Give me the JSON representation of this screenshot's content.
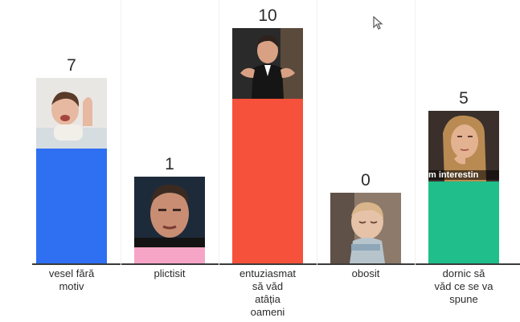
{
  "chart_data": {
    "type": "bar",
    "title": "",
    "xlabel": "",
    "ylabel": "",
    "ylim": [
      0,
      10
    ],
    "grid": false,
    "legend": "none",
    "categories": [
      "vesel fără motiv",
      "plictisit",
      "entuziasmat să văd atâția oameni",
      "obosit",
      "dornic să văd ce se va spune"
    ],
    "category_lines": [
      [
        "vesel fără",
        "motiv"
      ],
      [
        "plictisit"
      ],
      [
        "entuziasmat",
        "să văd",
        "atâția",
        "oameni"
      ],
      [
        "obosit"
      ],
      [
        "dornic să",
        "văd ce se va",
        "spune"
      ]
    ],
    "values": [
      7,
      1,
      10,
      0,
      5
    ],
    "colors": [
      "#2f6ff2",
      "#f6a5c6",
      "#f5513b",
      "#7c56d6",
      "#1fbe8a"
    ],
    "thumbnails": [
      "laughing-baby-photo",
      "bored-man-photo",
      "excited-host-photo",
      "sleepy-toddler-photo",
      "thinking-woman-photo"
    ],
    "thumbnail_caption": "m interestin"
  }
}
